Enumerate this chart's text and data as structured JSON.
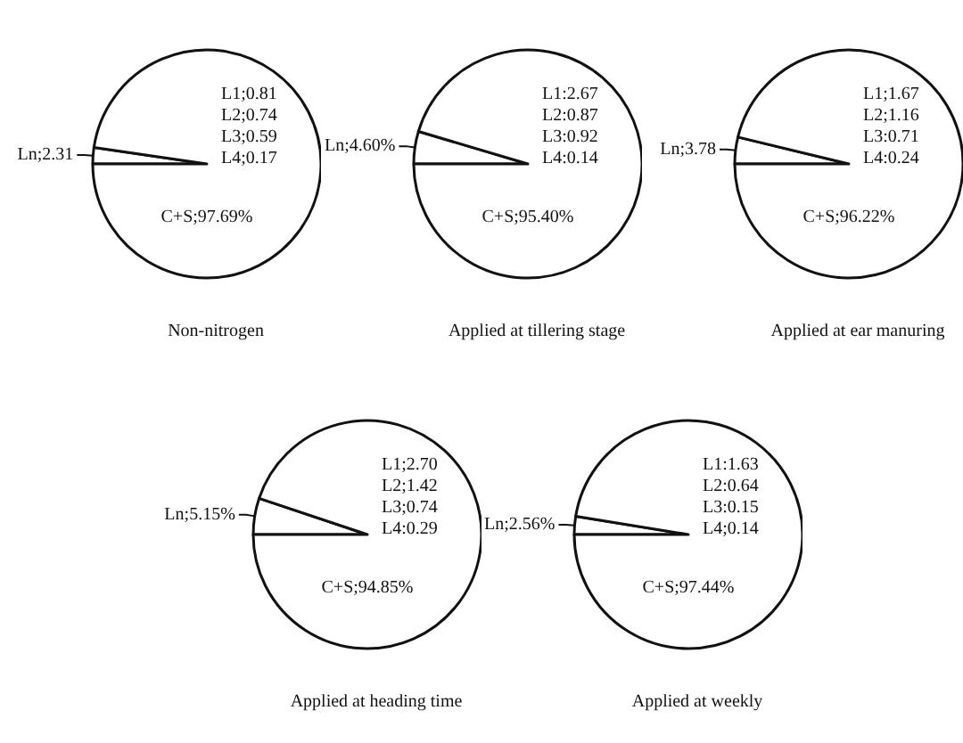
{
  "chart_data": [
    {
      "type": "pie",
      "title": "Non-nitrogen",
      "categories": [
        "Ln",
        "C+S"
      ],
      "values": [
        2.31,
        97.69
      ],
      "colors": [
        "#ffffff",
        "#ffffff"
      ],
      "value_labels": [
        "2.31",
        "97.69%"
      ],
      "annotations": [
        "L1;0.81",
        "L2;0.74",
        "L3;0.59",
        "L4;0.17"
      ]
    },
    {
      "type": "pie",
      "title": "Applied at tillering stage",
      "categories": [
        "Ln",
        "C+S"
      ],
      "values": [
        4.6,
        95.4
      ],
      "colors": [
        "#ffffff",
        "#ffffff"
      ],
      "value_labels": [
        "4.60%",
        "95.40%"
      ],
      "annotations": [
        "L1:2.67",
        "L2:0.87",
        "L3:0.92",
        "L4:0.14"
      ]
    },
    {
      "type": "pie",
      "title": "Applied at ear manuring",
      "categories": [
        "Ln",
        "C+S"
      ],
      "values": [
        3.78,
        96.22
      ],
      "colors": [
        "#ffffff",
        "#ffffff"
      ],
      "value_labels": [
        "3.78",
        "96.22%"
      ],
      "annotations": [
        "L1;1.67",
        "L2;1.16",
        "L3:0.71",
        "L4:0.24"
      ]
    },
    {
      "type": "pie",
      "title": "Applied at heading time",
      "categories": [
        "Ln",
        "C+S"
      ],
      "values": [
        5.15,
        94.85
      ],
      "colors": [
        "#ffffff",
        "#ffffff"
      ],
      "value_labels": [
        "5.15%",
        "94.85%"
      ],
      "annotations": [
        "L1;2.70",
        "L2;1.42",
        "L3;0.74",
        "L4:0.29"
      ]
    },
    {
      "type": "pie",
      "title": "Applied at weekly",
      "categories": [
        "Ln",
        "C+S"
      ],
      "values": [
        2.56,
        97.44
      ],
      "colors": [
        "#ffffff",
        "#ffffff"
      ],
      "value_labels": [
        "2.56%",
        "97.44%"
      ],
      "annotations": [
        "L1:1.63",
        "L2:0.64",
        "L3:0.15",
        "L4;0.14"
      ]
    }
  ]
}
